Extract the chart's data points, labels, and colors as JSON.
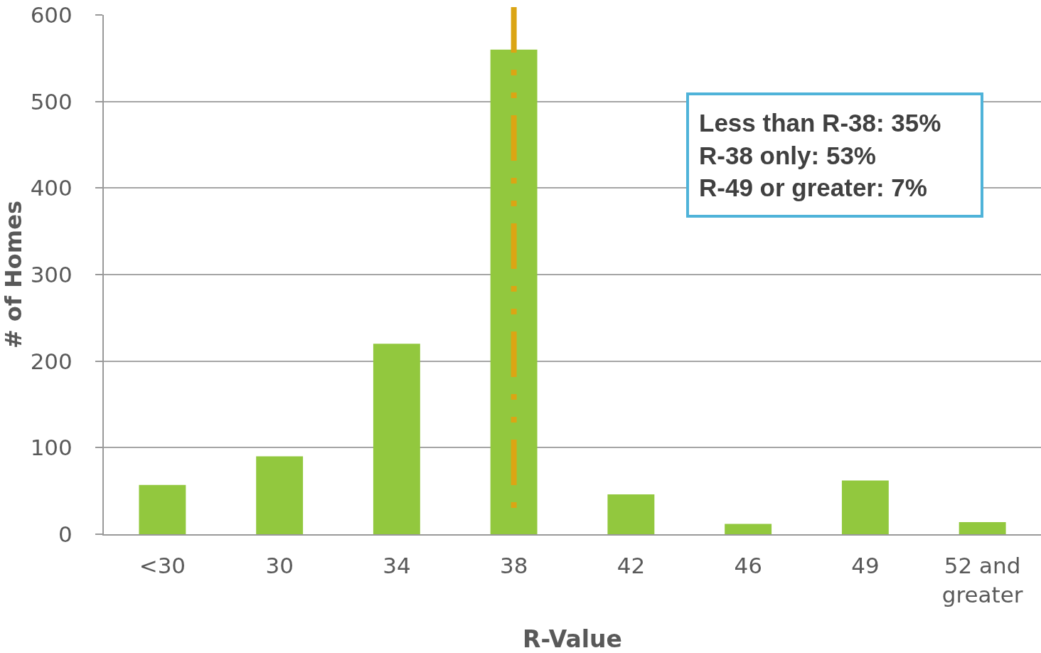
{
  "chart_data": {
    "type": "bar",
    "xlabel": "R-Value",
    "ylabel": "# of Homes",
    "categories": [
      "<30",
      "30",
      "34",
      "38",
      "42",
      "46",
      "49",
      "52 and greater"
    ],
    "values": [
      57,
      90,
      220,
      560,
      46,
      12,
      62,
      14
    ],
    "color": "#92c83e",
    "ylim": [
      0,
      600
    ],
    "yticks": [
      0,
      100,
      200,
      300,
      400,
      500,
      600
    ],
    "grid": "y",
    "ref_lines": [
      {
        "axis": "x",
        "value": "38",
        "color": "#dba514",
        "line_style": "dashdot"
      }
    ],
    "annotations": [
      "Less than R-38: 35%\nR-38 only: 53%\nR-49 or greater: 7%"
    ]
  }
}
